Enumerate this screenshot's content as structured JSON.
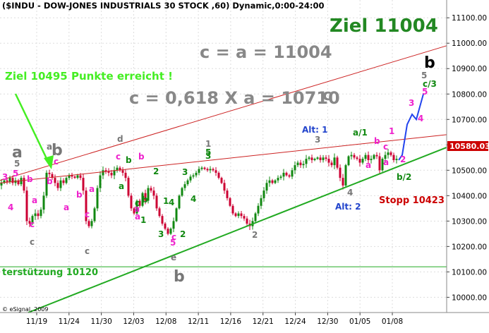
{
  "header": {
    "title": "($INDU - DOW-JONES INDUSTRIALS 30 STOCK ,60) Dynamic,0:00-24:00"
  },
  "annotations": {
    "ziel_main": "Ziel 11004",
    "c_equals_a": "c = a = 11004",
    "c_fib": "c = 0,618 X a = 10710",
    "c_fib_suffix": "c",
    "ziel_reached": "Ziel 10495 Punkte erreicht !",
    "support": "terstützung 10120",
    "stop": "Stopp 10423",
    "alt1": "Alt: 1",
    "alt2": "Alt: 2",
    "copyright": "© eSignal, 2009",
    "current_price": "10580.03"
  },
  "colors": {
    "trend_red": "#cc2222",
    "trend_green": "#22aa22",
    "support_green": "#22aa22",
    "arrow_green": "#44ee22",
    "projection_blue": "#2244ee",
    "wave_magenta": "#ee22cc",
    "wave_green": "#118811",
    "wave_gray": "#777777",
    "candle_up": "#118811",
    "candle_down": "#cc0033",
    "price_box": "#cc0000"
  },
  "wave_labels": [
    {
      "text": "a",
      "color": "gray",
      "big": true
    },
    {
      "text": "5",
      "color": "gray"
    },
    {
      "text": "5",
      "color": "magenta"
    },
    {
      "text": "3",
      "color": "magenta"
    },
    {
      "text": "b",
      "color": "magenta"
    },
    {
      "text": "4",
      "color": "magenta"
    },
    {
      "text": "a",
      "color": "magenta"
    },
    {
      "text": "c",
      "color": "magenta"
    },
    {
      "text": "c",
      "color": "gray"
    },
    {
      "text": "a",
      "color": "gray"
    },
    {
      "text": "b",
      "color": "gray",
      "big": true
    },
    {
      "text": "c",
      "color": "magenta"
    },
    {
      "text": "b",
      "color": "magenta"
    },
    {
      "text": "a",
      "color": "magenta"
    },
    {
      "text": "a",
      "color": "magenta"
    },
    {
      "text": "b",
      "color": "magenta"
    },
    {
      "text": "c",
      "color": "magenta"
    },
    {
      "text": "c",
      "color": "gray"
    },
    {
      "text": "d",
      "color": "gray"
    },
    {
      "text": "c",
      "color": "magenta"
    },
    {
      "text": "b",
      "color": "magenta"
    },
    {
      "text": "b",
      "color": "green"
    },
    {
      "text": "a",
      "color": "green"
    },
    {
      "text": "2",
      "color": "green"
    },
    {
      "text": "3",
      "color": "green"
    },
    {
      "text": "a",
      "color": "magenta"
    },
    {
      "text": "c",
      "color": "green"
    },
    {
      "text": "b",
      "color": "green"
    },
    {
      "text": "a",
      "color": "magenta"
    },
    {
      "text": "1",
      "color": "green"
    },
    {
      "text": "4",
      "color": "green"
    },
    {
      "text": "1",
      "color": "green"
    },
    {
      "text": "3",
      "color": "green"
    },
    {
      "text": "2",
      "color": "green"
    },
    {
      "text": "5",
      "color": "magenta"
    },
    {
      "text": "c",
      "color": "magenta"
    },
    {
      "text": "e",
      "color": "gray"
    },
    {
      "text": "b",
      "color": "gray",
      "big": true
    },
    {
      "text": "4",
      "color": "green"
    },
    {
      "text": "3",
      "color": "green"
    },
    {
      "text": "1",
      "color": "gray"
    },
    {
      "text": "5",
      "color": "green"
    },
    {
      "text": "2",
      "color": "gray"
    },
    {
      "text": "3",
      "color": "gray"
    },
    {
      "text": "a/1",
      "color": "green"
    },
    {
      "text": "4",
      "color": "gray"
    },
    {
      "text": "1",
      "color": "magenta"
    },
    {
      "text": "b",
      "color": "magenta"
    },
    {
      "text": "a",
      "color": "magenta"
    },
    {
      "text": "a",
      "color": "magenta"
    },
    {
      "text": "c",
      "color": "magenta"
    },
    {
      "text": "b/2",
      "color": "green"
    },
    {
      "text": "2",
      "color": "magenta"
    },
    {
      "text": "3",
      "color": "magenta"
    },
    {
      "text": "4",
      "color": "magenta"
    },
    {
      "text": "5",
      "color": "magenta"
    },
    {
      "text": "c/3",
      "color": "green"
    },
    {
      "text": "5",
      "color": "gray"
    },
    {
      "text": "b",
      "color": "black",
      "big": true
    }
  ],
  "chart_data": {
    "type": "candlestick",
    "title": "($INDU - DOW-JONES INDUSTRIALS 30 STOCK ,60) Dynamic,0:00-24:00",
    "x_ticks": [
      "11/19",
      "11/24",
      "11/30",
      "12/03",
      "12/08",
      "12/11",
      "12/16",
      "12/21",
      "12/24",
      "12/30",
      "01/05",
      "01/08"
    ],
    "y_ticks": [
      10000,
      10100,
      10200,
      10300,
      10400,
      10500,
      10600,
      10700,
      10800,
      10900,
      11000,
      11100
    ],
    "y_tick_labels": [
      "10000.00",
      "10100.00",
      "10200.00",
      "10300.00",
      "10400.00",
      "10500.00",
      "10600.00",
      "10700.00",
      "10800.00",
      "10900.00",
      "11000.00",
      "11100.00"
    ],
    "ylim": [
      9940,
      11170
    ],
    "grid": true,
    "last_price": 10580.03,
    "price_path": [
      [
        0,
        10440
      ],
      [
        4,
        10450
      ],
      [
        8,
        10460
      ],
      [
        12,
        10455
      ],
      [
        16,
        10470
      ],
      [
        20,
        10450
      ],
      [
        24,
        10460
      ],
      [
        28,
        10445
      ],
      [
        32,
        10470
      ],
      [
        36,
        10420
      ],
      [
        40,
        10300
      ],
      [
        44,
        10290
      ],
      [
        48,
        10320
      ],
      [
        52,
        10330
      ],
      [
        56,
        10320
      ],
      [
        60,
        10345
      ],
      [
        64,
        10400
      ],
      [
        68,
        10490
      ],
      [
        72,
        10485
      ],
      [
        76,
        10470
      ],
      [
        80,
        10450
      ],
      [
        84,
        10430
      ],
      [
        88,
        10460
      ],
      [
        92,
        10450
      ],
      [
        96,
        10470
      ],
      [
        100,
        10480
      ],
      [
        104,
        10475
      ],
      [
        108,
        10470
      ],
      [
        112,
        10480
      ],
      [
        116,
        10470
      ],
      [
        120,
        10420
      ],
      [
        124,
        10300
      ],
      [
        128,
        10280
      ],
      [
        132,
        10300
      ],
      [
        136,
        10350
      ],
      [
        140,
        10430
      ],
      [
        144,
        10480
      ],
      [
        148,
        10500
      ],
      [
        152,
        10495
      ],
      [
        156,
        10490
      ],
      [
        160,
        10480
      ],
      [
        164,
        10500
      ],
      [
        168,
        10510
      ],
      [
        172,
        10500
      ],
      [
        176,
        10490
      ],
      [
        180,
        10470
      ],
      [
        184,
        10400
      ],
      [
        188,
        10350
      ],
      [
        192,
        10330
      ],
      [
        196,
        10380
      ],
      [
        200,
        10360
      ],
      [
        204,
        10410
      ],
      [
        208,
        10380
      ],
      [
        212,
        10430
      ],
      [
        216,
        10420
      ],
      [
        220,
        10400
      ],
      [
        224,
        10350
      ],
      [
        228,
        10320
      ],
      [
        232,
        10290
      ],
      [
        236,
        10270
      ],
      [
        240,
        10250
      ],
      [
        244,
        10270
      ],
      [
        248,
        10300
      ],
      [
        252,
        10350
      ],
      [
        256,
        10400
      ],
      [
        260,
        10430
      ],
      [
        264,
        10445
      ],
      [
        268,
        10460
      ],
      [
        272,
        10475
      ],
      [
        276,
        10480
      ],
      [
        280,
        10490
      ],
      [
        284,
        10505
      ],
      [
        288,
        10510
      ],
      [
        292,
        10505
      ],
      [
        296,
        10500
      ],
      [
        300,
        10505
      ],
      [
        304,
        10500
      ],
      [
        308,
        10490
      ],
      [
        312,
        10470
      ],
      [
        316,
        10450
      ],
      [
        320,
        10420
      ],
      [
        324,
        10390
      ],
      [
        328,
        10360
      ],
      [
        332,
        10330
      ],
      [
        336,
        10320
      ],
      [
        340,
        10330
      ],
      [
        344,
        10320
      ],
      [
        348,
        10310
      ],
      [
        352,
        10290
      ],
      [
        356,
        10280
      ],
      [
        360,
        10300
      ],
      [
        364,
        10330
      ],
      [
        368,
        10360
      ],
      [
        372,
        10390
      ],
      [
        376,
        10420
      ],
      [
        380,
        10450
      ],
      [
        384,
        10460
      ],
      [
        388,
        10450
      ],
      [
        392,
        10460
      ],
      [
        396,
        10470
      ],
      [
        400,
        10475
      ],
      [
        404,
        10490
      ],
      [
        408,
        10480
      ],
      [
        412,
        10475
      ],
      [
        416,
        10500
      ],
      [
        420,
        10520
      ],
      [
        424,
        10530
      ],
      [
        428,
        10520
      ],
      [
        432,
        10525
      ],
      [
        436,
        10545
      ],
      [
        440,
        10550
      ],
      [
        444,
        10540
      ],
      [
        448,
        10545
      ],
      [
        452,
        10550
      ],
      [
        456,
        10540
      ],
      [
        460,
        10550
      ],
      [
        464,
        10545
      ],
      [
        468,
        10530
      ],
      [
        472,
        10520
      ],
      [
        476,
        10550
      ],
      [
        480,
        10510
      ],
      [
        484,
        10470
      ],
      [
        488,
        10440
      ],
      [
        492,
        10520
      ],
      [
        496,
        10555
      ],
      [
        500,
        10560
      ],
      [
        504,
        10550
      ],
      [
        508,
        10545
      ],
      [
        512,
        10530
      ],
      [
        516,
        10545
      ],
      [
        520,
        10560
      ],
      [
        524,
        10540
      ],
      [
        528,
        10545
      ],
      [
        532,
        10560
      ],
      [
        536,
        10555
      ],
      [
        540,
        10500
      ],
      [
        544,
        10545
      ],
      [
        548,
        10560
      ],
      [
        552,
        10570
      ],
      [
        556,
        10560
      ],
      [
        560,
        10540
      ],
      [
        564,
        10545
      ]
    ],
    "projection_path": [
      [
        565,
        10540
      ],
      [
        570,
        10560
      ],
      [
        577,
        10680
      ],
      [
        584,
        10720
      ],
      [
        590,
        10700
      ],
      [
        600,
        10800
      ]
    ],
    "lines": [
      {
        "name": "upper-red-channel",
        "p1": [
          0,
          10460
        ],
        "p2": [
          633,
          10990
        ]
      },
      {
        "name": "middle-red-channel",
        "p1": [
          0,
          10450
        ],
        "p2": [
          633,
          10640
        ]
      },
      {
        "name": "green-uptrend",
        "p1": [
          40,
          9940
        ],
        "p2": [
          633,
          10590
        ]
      },
      {
        "name": "support-10120",
        "p1": [
          0,
          10120
        ],
        "p2": [
          633,
          10120
        ]
      }
    ]
  }
}
